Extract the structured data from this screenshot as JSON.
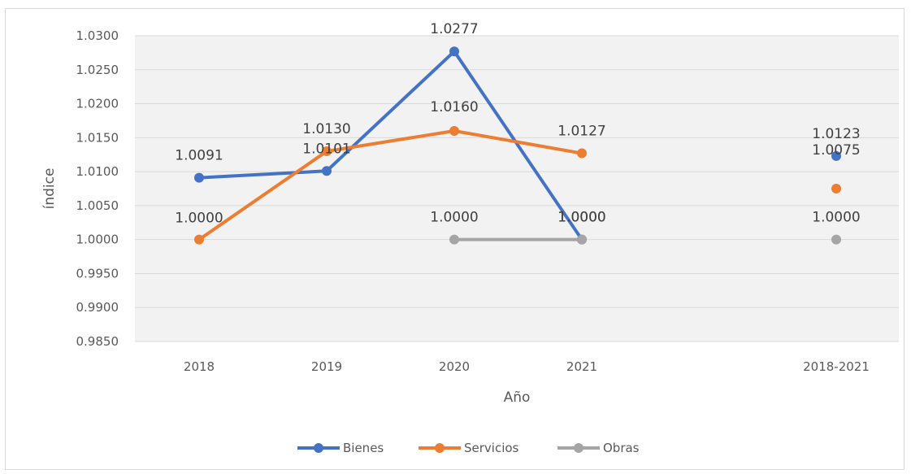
{
  "chart_data": {
    "type": "line",
    "title": "",
    "xlabel": "Año",
    "ylabel": "índice",
    "categories": [
      "2018",
      "2019",
      "2020",
      "2021",
      "2018-2021"
    ],
    "ylim": [
      0.985,
      1.03
    ],
    "y_ticks": [
      "1.0300",
      "1.0250",
      "1.0200",
      "1.0150",
      "1.0100",
      "1.0050",
      "1.0000",
      "0.9950",
      "0.9900",
      "0.9850"
    ],
    "grid": true,
    "legend_position": "bottom",
    "series": [
      {
        "name": "Bienes",
        "color": "#4472c4",
        "values": [
          1.0091,
          1.0101,
          1.0277,
          1.0,
          1.0123
        ],
        "labels": [
          "1.0091",
          "1.0101",
          "1.0277",
          "1.0000",
          "1.0123"
        ]
      },
      {
        "name": "Servicios",
        "color": "#ed7d31",
        "values": [
          1.0,
          1.013,
          1.016,
          1.0127,
          1.0075
        ],
        "labels": [
          "1.0000",
          "1.0130",
          "1.0160",
          "1.0127",
          "1.0075"
        ]
      },
      {
        "name": "Obras",
        "color": "#a5a5a5",
        "values": [
          null,
          null,
          1.0,
          1.0,
          1.0
        ],
        "labels": [
          null,
          null,
          "1.0000",
          "1.0000",
          "1.0000"
        ]
      }
    ]
  }
}
